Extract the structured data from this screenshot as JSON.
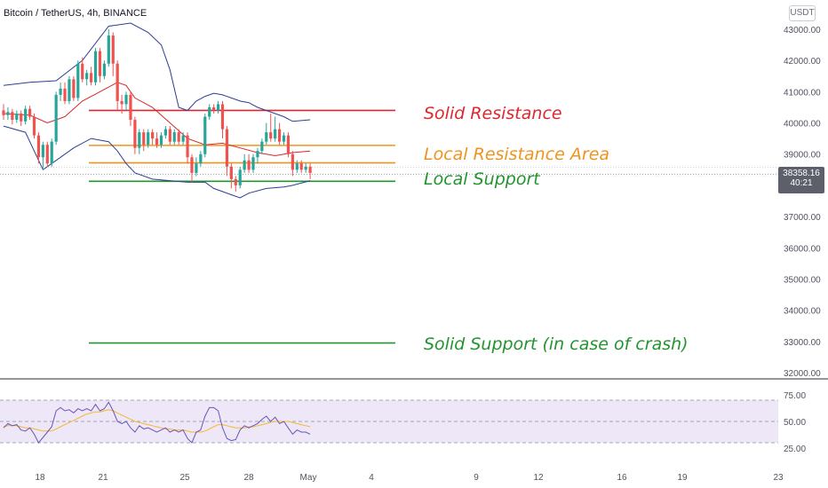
{
  "header": {
    "symbol_title": "Bitcoin / TetherUS, 4h, BINANCE",
    "currency_badge": "USDT"
  },
  "price_badge": {
    "price": "38358.16",
    "countdown": "40:21"
  },
  "colors": {
    "up": "#26a69a",
    "down": "#ef5350",
    "resistance": "#e0262f",
    "local_resistance": "#f0931e",
    "support": "#23942f",
    "bollinger": "#2c3e94",
    "basis": "#d62828",
    "rsi": "#6a55b8",
    "rsi_ma": "#f5b82e",
    "rsi_band": "#ede7f8"
  },
  "chart_data": [
    {
      "type": "line",
      "pane": "price",
      "title": "",
      "y_ticks": [
        "43000.00",
        "42000.00",
        "41000.00",
        "40000.00",
        "39000.00",
        "38000.00",
        "37000.00",
        "36000.00",
        "35000.00",
        "34000.00",
        "33000.00",
        "32000.00"
      ],
      "ylim": [
        31850,
        43300
      ],
      "x_ticks": [
        "18",
        "21",
        "25",
        "28",
        "May",
        "4",
        "9",
        "12",
        "16",
        "19",
        "23"
      ],
      "candles": [
        [
          40400,
          40250,
          40600,
          40100
        ],
        [
          40250,
          40350,
          40500,
          40100
        ],
        [
          40350,
          40100,
          40450,
          39950
        ],
        [
          40100,
          40300,
          40400,
          40000
        ],
        [
          40300,
          40050,
          40400,
          39900
        ],
        [
          40050,
          40450,
          40550,
          39950
        ],
        [
          40450,
          40200,
          40550,
          40100
        ],
        [
          40200,
          39600,
          40300,
          39500
        ],
        [
          39600,
          38900,
          39700,
          38700
        ],
        [
          38900,
          39300,
          39400,
          38500
        ],
        [
          39300,
          38700,
          39400,
          38600
        ],
        [
          38700,
          39400,
          39500,
          38600
        ],
        [
          39400,
          40900,
          41000,
          39300
        ],
        [
          40900,
          41100,
          41300,
          40700
        ],
        [
          41100,
          40700,
          41300,
          40600
        ],
        [
          40700,
          41400,
          41500,
          40600
        ],
        [
          41400,
          40800,
          41500,
          40700
        ],
        [
          40800,
          41900,
          42000,
          40700
        ],
        [
          41900,
          41400,
          42100,
          41300
        ],
        [
          41400,
          41600,
          41700,
          41200
        ],
        [
          41600,
          41300,
          41800,
          41200
        ],
        [
          41300,
          42300,
          42400,
          41200
        ],
        [
          42300,
          41500,
          42400,
          41300
        ],
        [
          41500,
          41900,
          42000,
          41400
        ],
        [
          41900,
          42800,
          43000,
          41800
        ],
        [
          42800,
          41900,
          42900,
          41500
        ],
        [
          41900,
          40700,
          42000,
          40400
        ],
        [
          40700,
          40600,
          40900,
          40300
        ],
        [
          40600,
          40900,
          41000,
          40400
        ],
        [
          40900,
          40100,
          41000,
          39900
        ],
        [
          40100,
          39200,
          40200,
          39000
        ],
        [
          39200,
          39700,
          39800,
          39000
        ],
        [
          39700,
          39300,
          39800,
          39100
        ],
        [
          39300,
          39700,
          39800,
          39200
        ],
        [
          39700,
          39500,
          39800,
          39300
        ],
        [
          39500,
          39300,
          39700,
          39200
        ],
        [
          39300,
          39600,
          39700,
          39200
        ],
        [
          39600,
          39800,
          39900,
          39500
        ],
        [
          39800,
          39400,
          39900,
          39300
        ],
        [
          39400,
          39700,
          39800,
          39300
        ],
        [
          39700,
          39400,
          39800,
          39300
        ],
        [
          39400,
          39600,
          39700,
          39300
        ],
        [
          39600,
          38900,
          39700,
          38700
        ],
        [
          38900,
          38400,
          39000,
          38100
        ],
        [
          38400,
          38700,
          38900,
          38300
        ],
        [
          38700,
          39000,
          39100,
          38600
        ],
        [
          39000,
          40200,
          40300,
          38900
        ],
        [
          40200,
          40500,
          40600,
          40100
        ],
        [
          40500,
          40400,
          40600,
          40300
        ],
        [
          40400,
          40600,
          40700,
          40300
        ],
        [
          40600,
          39800,
          40700,
          39500
        ],
        [
          39800,
          38600,
          39900,
          38300
        ],
        [
          38600,
          38200,
          38700,
          37900
        ],
        [
          38200,
          38000,
          38300,
          37800
        ],
        [
          38000,
          38500,
          38600,
          37900
        ],
        [
          38500,
          38800,
          39000,
          38400
        ],
        [
          38800,
          38500,
          39000,
          38400
        ],
        [
          38500,
          38900,
          39000,
          38400
        ],
        [
          38900,
          39100,
          39200,
          38700
        ],
        [
          39100,
          39400,
          39500,
          39000
        ],
        [
          39400,
          39700,
          40000,
          39300
        ],
        [
          39700,
          39500,
          40300,
          39400
        ],
        [
          39500,
          39800,
          40200,
          39400
        ],
        [
          39800,
          39400,
          40000,
          39300
        ],
        [
          39400,
          39600,
          39700,
          39300
        ],
        [
          39600,
          39000,
          39700,
          38900
        ],
        [
          39000,
          38500,
          39100,
          38300
        ],
        [
          38500,
          38700,
          38800,
          38400
        ],
        [
          38700,
          38500,
          38800,
          38400
        ],
        [
          38500,
          38600,
          38700,
          38400
        ],
        [
          38600,
          38400,
          38700,
          38200
        ]
      ],
      "bollinger_upper": [
        [
          0,
          41200
        ],
        [
          6,
          41300
        ],
        [
          12,
          41350
        ],
        [
          18,
          42000
        ],
        [
          24,
          43100
        ],
        [
          29,
          43200
        ],
        [
          33,
          42900
        ],
        [
          36,
          42500
        ],
        [
          38,
          41700
        ],
        [
          40,
          40500
        ],
        [
          42,
          40400
        ],
        [
          44,
          40700
        ],
        [
          46,
          40850
        ],
        [
          48,
          40950
        ],
        [
          50,
          40900
        ],
        [
          52,
          40800
        ],
        [
          54,
          40700
        ],
        [
          56,
          40650
        ],
        [
          58,
          40500
        ],
        [
          60,
          40400
        ],
        [
          62,
          40300
        ],
        [
          64,
          40200
        ],
        [
          66,
          40050
        ],
        [
          70,
          40100
        ]
      ],
      "bollinger_lower": [
        [
          0,
          39900
        ],
        [
          5,
          39700
        ],
        [
          9,
          38500
        ],
        [
          12,
          38800
        ],
        [
          16,
          39200
        ],
        [
          20,
          39500
        ],
        [
          24,
          39400
        ],
        [
          26,
          39100
        ],
        [
          28,
          38700
        ],
        [
          30,
          38400
        ],
        [
          34,
          38200
        ],
        [
          38,
          38150
        ],
        [
          42,
          38100
        ],
        [
          46,
          38100
        ],
        [
          48,
          37900
        ],
        [
          50,
          37800
        ],
        [
          52,
          37700
        ],
        [
          54,
          37600
        ],
        [
          56,
          37750
        ],
        [
          60,
          37900
        ],
        [
          64,
          37950
        ],
        [
          66,
          38000
        ],
        [
          70,
          38150
        ]
      ],
      "bollinger_basis": [
        [
          0,
          40300
        ],
        [
          6,
          40250
        ],
        [
          10,
          40000
        ],
        [
          14,
          40200
        ],
        [
          18,
          40700
        ],
        [
          22,
          41000
        ],
        [
          26,
          41300
        ],
        [
          28,
          41200
        ],
        [
          30,
          40800
        ],
        [
          34,
          40500
        ],
        [
          38,
          40000
        ],
        [
          42,
          39500
        ],
        [
          46,
          39300
        ],
        [
          50,
          39350
        ],
        [
          54,
          39200
        ],
        [
          58,
          39050
        ],
        [
          62,
          38950
        ],
        [
          66,
          39050
        ],
        [
          70,
          39100
        ]
      ],
      "levels": [
        {
          "label": "Solid Resistance",
          "value": 40400,
          "color": "#e0262f"
        },
        {
          "label": "Local Resistance Area",
          "value": 39280,
          "color": "#f0931e"
        },
        {
          "label": "",
          "value": 38720,
          "color": "#f0931e"
        },
        {
          "label": "Local Support",
          "value": 38130,
          "color": "#23942f"
        },
        {
          "label": "Solid Support (in case of crash)",
          "value": 32950,
          "color": "#23942f"
        }
      ]
    },
    {
      "type": "line",
      "pane": "rsi",
      "title": "",
      "y_ticks": [
        "75.00",
        "50.00",
        "25.00"
      ],
      "ylim": [
        22,
        78
      ],
      "band": [
        30,
        70
      ],
      "mid": 50,
      "series": [
        {
          "values": [
            44,
            48,
            46,
            47,
            42,
            41,
            44,
            38,
            30,
            35,
            40,
            45,
            60,
            63,
            60,
            61,
            58,
            62,
            60,
            62,
            60,
            66,
            60,
            62,
            68,
            60,
            50,
            48,
            50,
            44,
            40,
            46,
            43,
            44,
            42,
            40,
            42,
            44,
            40,
            42,
            40,
            42,
            34,
            30,
            40,
            42,
            55,
            63,
            63,
            60,
            44,
            34,
            32,
            33,
            42,
            46,
            44,
            46,
            48,
            52,
            55,
            50,
            54,
            48,
            50,
            44,
            38,
            42,
            40,
            40,
            38
          ]
        },
        {
          "values": [
            45,
            46,
            46,
            46,
            45,
            44,
            44,
            43,
            42,
            41,
            41,
            41,
            43,
            45,
            47,
            49,
            51,
            53,
            55,
            57,
            58,
            59,
            59,
            60,
            61,
            60,
            58,
            56,
            54,
            52,
            50,
            49,
            48,
            47,
            46,
            45,
            44,
            43,
            43,
            42,
            42,
            42,
            41,
            40,
            40,
            40,
            41,
            43,
            45,
            47,
            47,
            46,
            45,
            44,
            44,
            44,
            45,
            45,
            46,
            47,
            48,
            49,
            50,
            50,
            50,
            50,
            49,
            48,
            47,
            46,
            45
          ]
        }
      ]
    }
  ]
}
